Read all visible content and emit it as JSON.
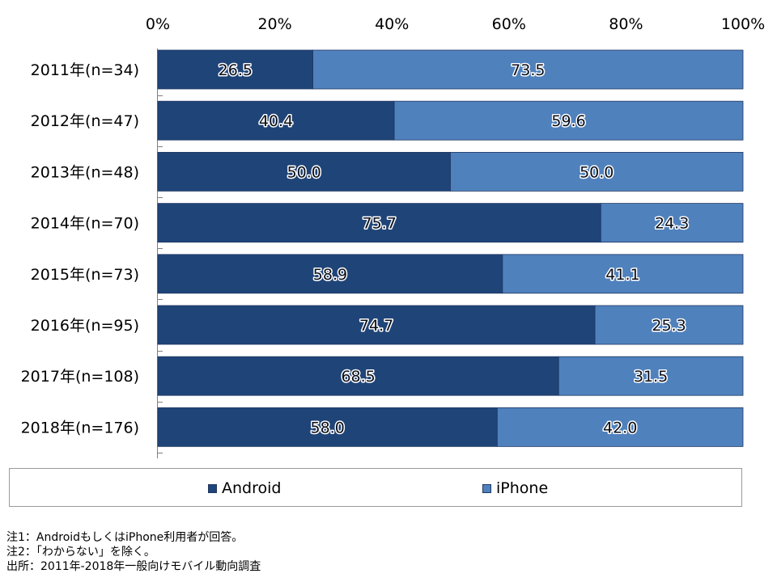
{
  "chart_data": {
    "type": "bar",
    "orientation": "horizontal",
    "stacked": true,
    "stack_mode": "percent",
    "categories": [
      "2011年(n=34)",
      "2012年(n=47)",
      "2013年(n=48)",
      "2014年(n=70)",
      "2015年(n=73)",
      "2016年(n=95)",
      "2017年(n=108)",
      "2018年(n=176)"
    ],
    "series": [
      {
        "name": "Android",
        "color": "#1f4478",
        "values": [
          "26.5",
          "40.4",
          "50.0",
          "75.7",
          "58.9",
          "74.7",
          "68.5",
          "58.0"
        ]
      },
      {
        "name": "iPhone",
        "color": "#4f81bd",
        "values": [
          "73.5",
          "59.6",
          "50.0",
          "24.3",
          "41.1",
          "25.3",
          "31.5",
          "42.0"
        ]
      }
    ],
    "x_ticks": [
      "0%",
      "20%",
      "40%",
      "60%",
      "80%",
      "100%"
    ],
    "xlim": [
      0,
      100
    ],
    "xaxis_position": "top",
    "grid": false,
    "legend_position": "bottom"
  },
  "notes": [
    "注1：AndroidもしくはiPhone利用者が回答。",
    "注2：「わからない」を除く。",
    "出所：2011年-2018年一般向けモバイル動向調査"
  ]
}
